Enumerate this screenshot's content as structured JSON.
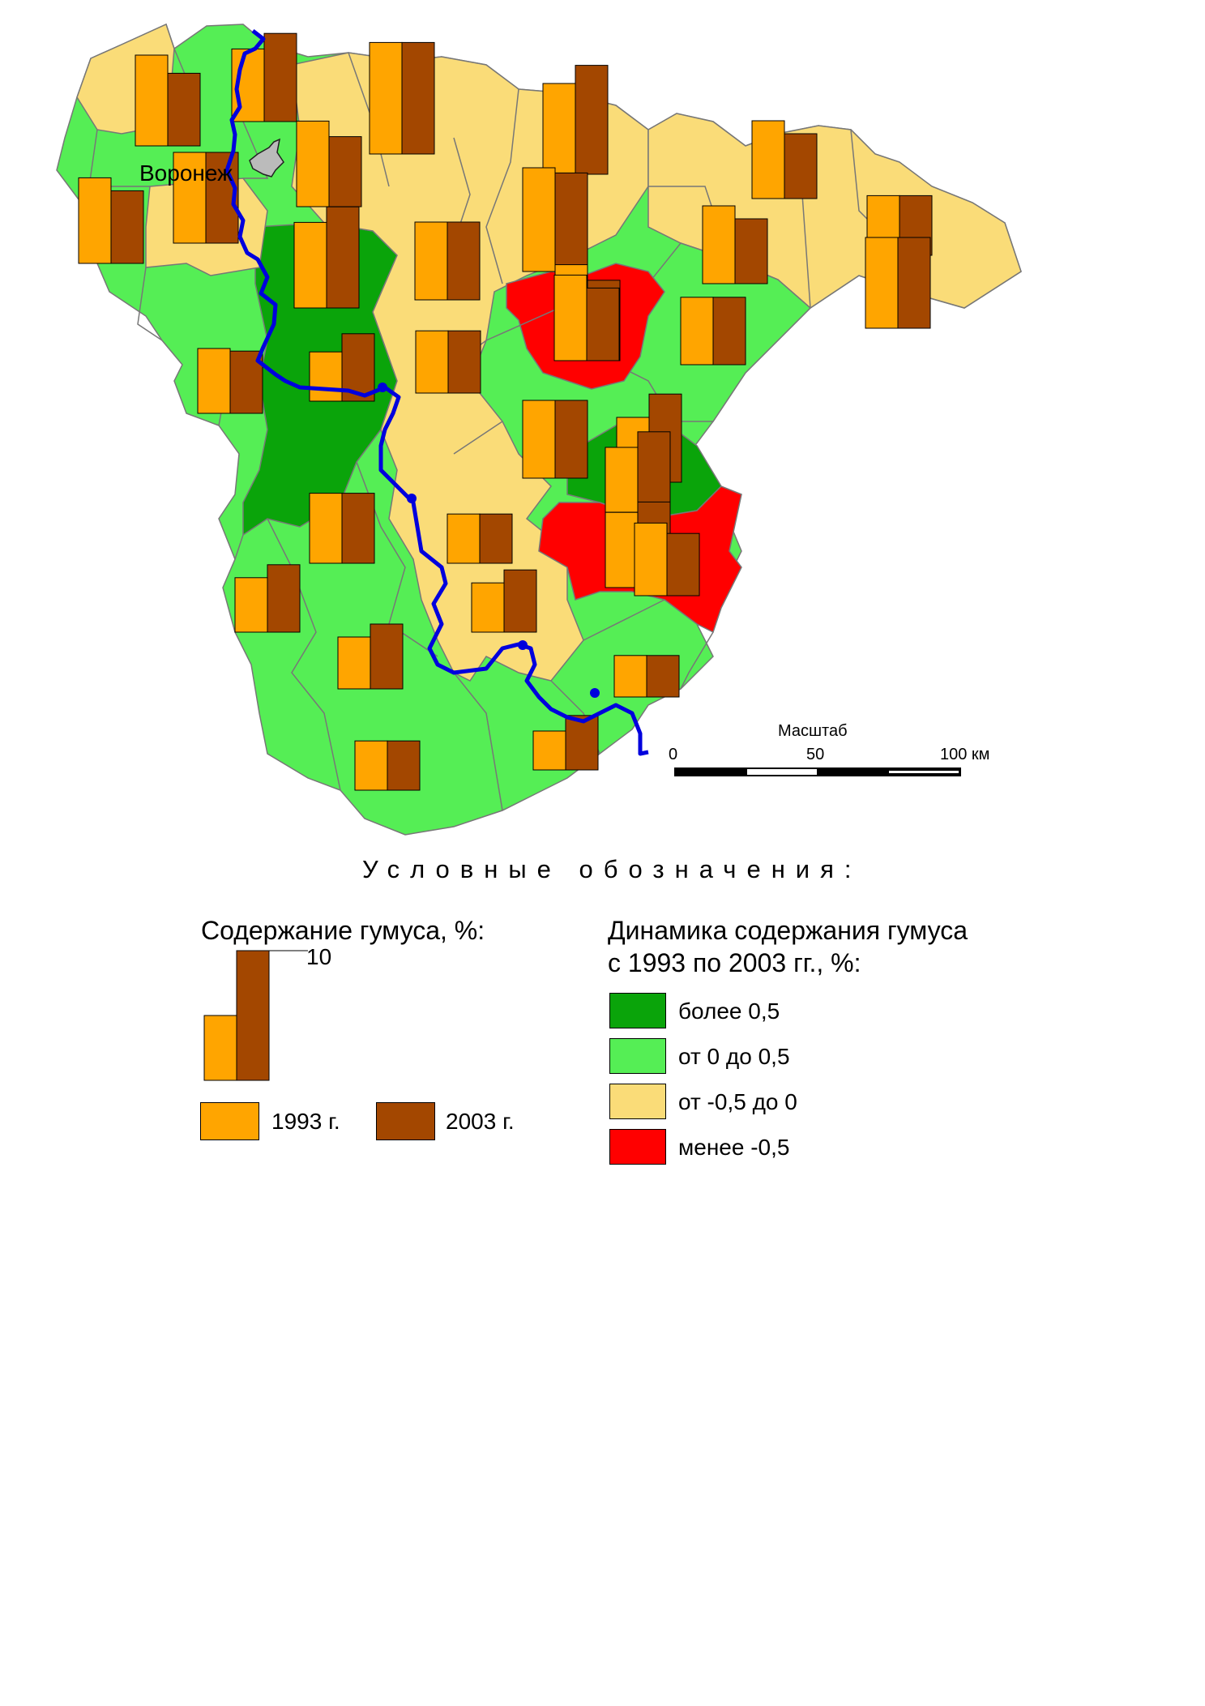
{
  "map": {
    "city_label": "Воронеж",
    "scale": {
      "title": "Масштаб",
      "ticks": [
        "0",
        "50",
        "100 км"
      ]
    }
  },
  "colors": {
    "more_0_5": "#0aa40a",
    "0_to_0_5": "#55ee55",
    "minus_0_5_to_0": "#fadc78",
    "less_minus_0_5": "#ff0000",
    "bar_1993": "#ffa500",
    "bar_2003": "#a34700",
    "river": "#0000dd"
  },
  "legend": {
    "heading": "Условные обозначения:",
    "humus": {
      "title": "Содержание гумуса, %:",
      "scale_value": "10",
      "label_1993": "1993 г.",
      "label_2003": "2003 г."
    },
    "dynamics": {
      "title_line1": "Динамика содержания гумуса",
      "title_line2": "с 1993 по 2003 гг., %:",
      "classes": [
        {
          "label": "более 0,5",
          "color": "#0aa40a"
        },
        {
          "label": "от 0 до 0,5",
          "color": "#55ee55"
        },
        {
          "label": "от -0,5 до 0",
          "color": "#fadc78"
        },
        {
          "label": "менее -0,5",
          "color": "#ff0000"
        }
      ]
    }
  },
  "districts": [
    {
      "class": "minus_0_5_to_0",
      "v1993": 7.0,
      "v2003": 5.6
    },
    {
      "class": "minus_0_5_to_0",
      "v1993": 5.6,
      "v2003": 6.8
    },
    {
      "class": "0_to_0_5",
      "v1993": 8.6,
      "v2003": 8.6
    },
    {
      "class": "0_to_0_5",
      "v1993": 7.0,
      "v2003": 8.4
    },
    {
      "class": "minus_0_5_to_0",
      "v1993": 6.6,
      "v2003": 5.4
    },
    {
      "class": "0_to_0_5",
      "v1993": 6.6,
      "v2003": 5.6
    },
    {
      "class": "0_to_0_5",
      "v1993": 7.0,
      "v2003": 7.0
    },
    {
      "class": "minus_0_5_to_0",
      "v1993": 6.0,
      "v2003": 5.0
    },
    {
      "class": "0_to_0_5",
      "v1993": 4.6,
      "v2003": 4.6
    },
    {
      "class": "minus_0_5_to_0",
      "v1993": 7.0,
      "v2003": 7.0
    },
    {
      "class": "more_0_5",
      "v1993": 6.6,
      "v2003": 7.8
    },
    {
      "class": "minus_0_5_to_0",
      "v1993": 6.0,
      "v2003": 6.0
    },
    {
      "class": "minus_0_5_to_0",
      "v1993": 8.0,
      "v2003": 7.6
    },
    {
      "class": "0_to_0_5",
      "v1993": 6.0,
      "v2003": 5.0
    },
    {
      "class": "minus_0_5_to_0",
      "v1993": 7.4,
      "v2003": 6.2
    },
    {
      "class": "less_minus_0_5",
      "v1993": 6.6,
      "v2003": 5.6
    },
    {
      "class": "0_to_0_5",
      "v1993": 5.2,
      "v2003": 5.2
    },
    {
      "class": "minus_0_5_to_0",
      "v1993": 4.8,
      "v2003": 4.8
    },
    {
      "class": "0_to_0_5",
      "v1993": 5.0,
      "v2003": 4.8
    },
    {
      "class": "more_0_5",
      "v1993": 3.8,
      "v2003": 5.2
    },
    {
      "class": "0_to_0_5",
      "v1993": 6.0,
      "v2003": 6.0
    },
    {
      "class": "0_to_0_5",
      "v1993": 5.0,
      "v2003": 6.8
    },
    {
      "class": "more_0_5",
      "v1993": 5.0,
      "v2003": 6.2
    },
    {
      "class": "0_to_0_5",
      "v1993": 5.4,
      "v2003": 5.4
    },
    {
      "class": "minus_0_5_to_0",
      "v1993": 3.8,
      "v2003": 3.8
    },
    {
      "class": "more_0_5",
      "v1993": 5.8,
      "v2003": 6.6
    },
    {
      "class": "less_minus_0_5",
      "v1993": 5.6,
      "v2003": 4.8
    },
    {
      "class": "0_to_0_5",
      "v1993": 4.2,
      "v2003": 5.2
    },
    {
      "class": "minus_0_5_to_0",
      "v1993": 3.8,
      "v2003": 4.8
    },
    {
      "class": "0_to_0_5",
      "v1993": 4.0,
      "v2003": 5.0
    },
    {
      "class": "0_to_0_5",
      "v1993": 3.2,
      "v2003": 3.2
    },
    {
      "class": "0_to_0_5",
      "v1993": 3.8,
      "v2003": 3.8
    },
    {
      "class": "0_to_0_5",
      "v1993": 3.0,
      "v2003": 4.2
    }
  ]
}
